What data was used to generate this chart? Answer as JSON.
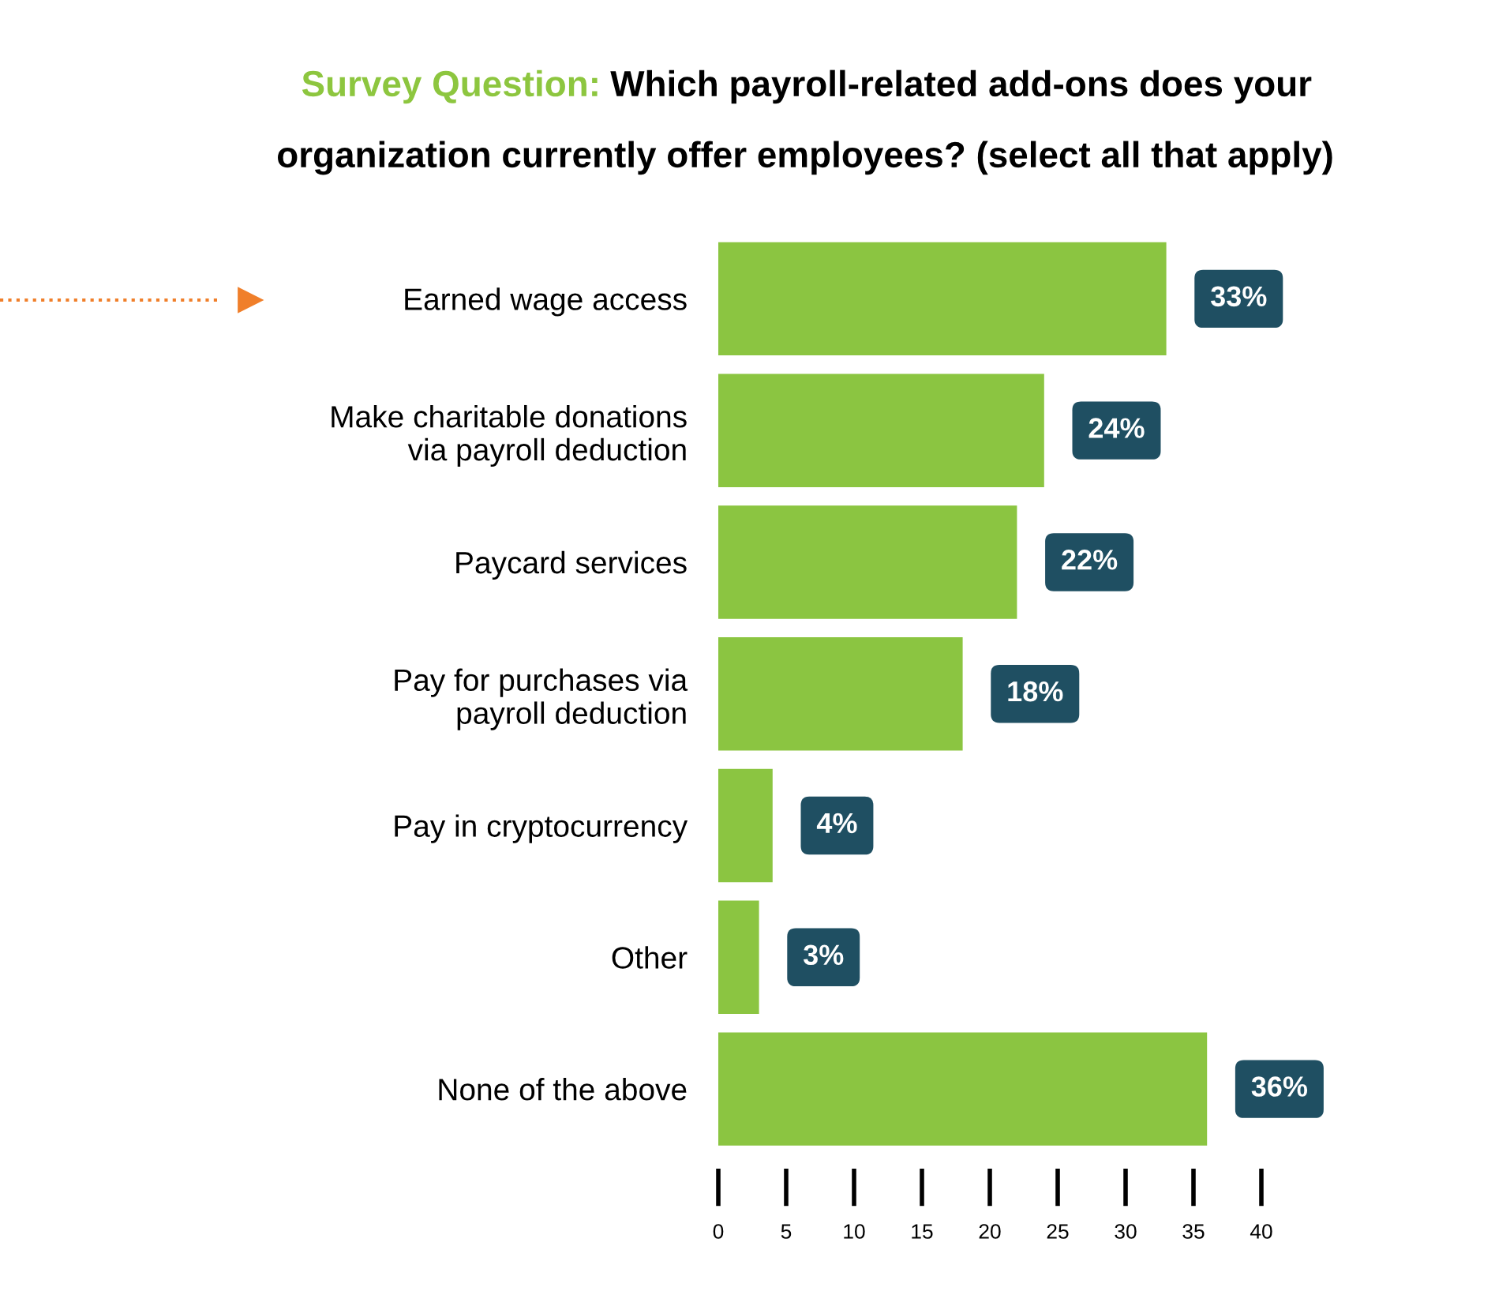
{
  "chart_data": {
    "type": "bar",
    "orientation": "horizontal",
    "title": "Survey Question:",
    "subtitle": "Which payroll-related add-ons does your\norganization currently offer employees? (select all that apply)",
    "categories": [
      "Earned wage access",
      "Make charitable donations\nvia payroll deduction",
      "Paycard services",
      "Pay for purchases via\npayroll deduction",
      "Pay in cryptocurrency",
      "Other",
      "None of the above"
    ],
    "values": [
      33,
      24,
      22,
      18,
      4,
      3,
      36
    ],
    "value_labels": [
      "33%",
      "24%",
      "22%",
      "18%",
      "4%",
      "3%",
      "36%"
    ],
    "color": "#8bc541",
    "xlim": [
      0,
      40
    ],
    "xticks": [
      0,
      5,
      10,
      15,
      20,
      25,
      30,
      35,
      40
    ],
    "grid": false,
    "legend": false
  }
}
